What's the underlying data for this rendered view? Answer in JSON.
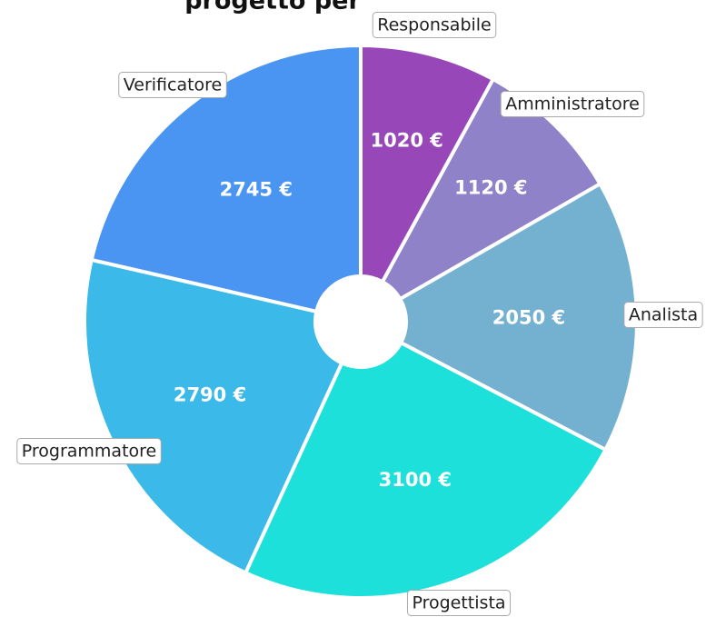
{
  "chart_data": {
    "type": "donut",
    "title": "progetto per",
    "categories": [
      "Responsabile",
      "Amministratore",
      "Analista",
      "Progettista",
      "Programmatore",
      "Verificatore"
    ],
    "values": [
      1020,
      1120,
      2050,
      3100,
      2790,
      2745
    ],
    "value_labels": [
      "1020 €",
      "1120 €",
      "2050 €",
      "3100 €",
      "2790 €",
      "2745 €"
    ],
    "colors": [
      "#9747b8",
      "#8f82c8",
      "#74b1d0",
      "#1de0da",
      "#3bb9e8",
      "#4a94f2"
    ]
  }
}
